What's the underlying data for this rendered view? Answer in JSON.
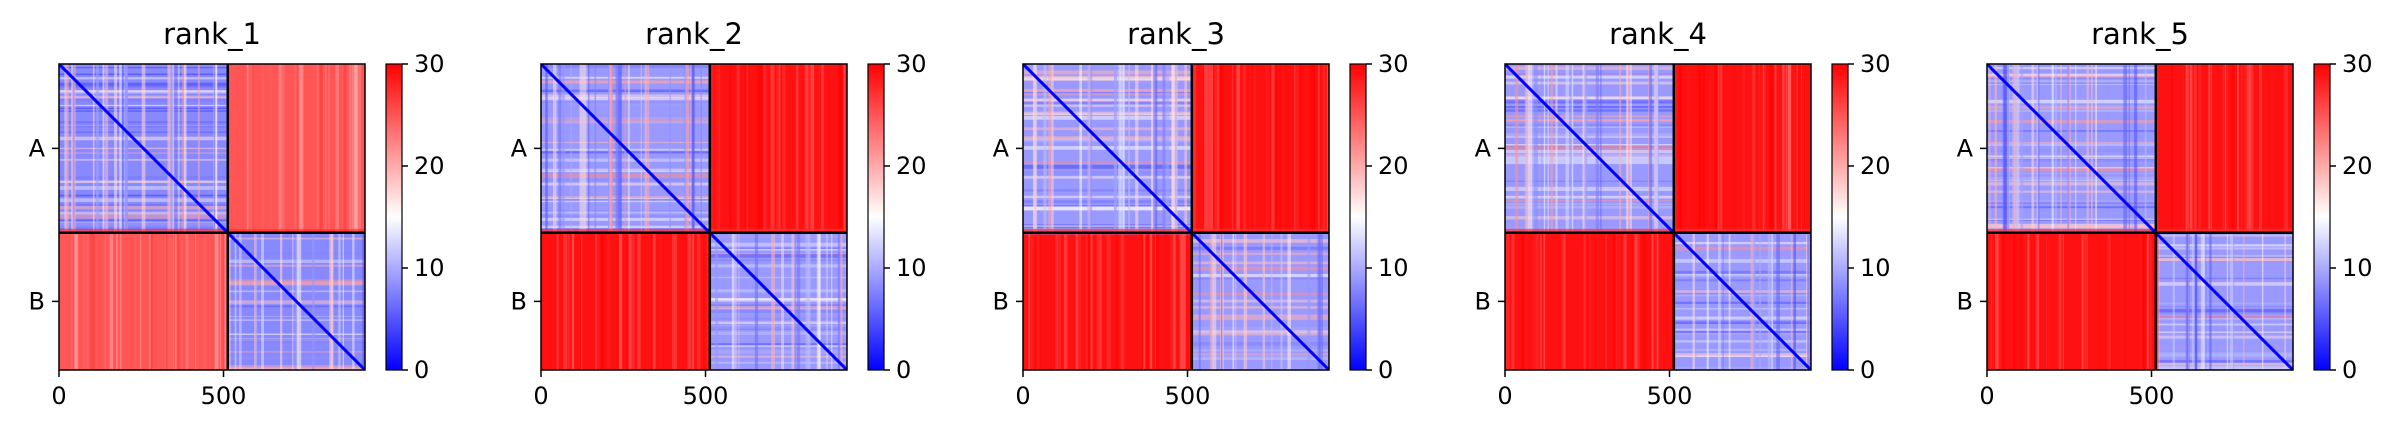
{
  "figure": {
    "colormap": {
      "name": "bwr",
      "low_color": "#0000ff",
      "mid_color": "#ffffff",
      "high_color": "#ff0000",
      "range": [
        0,
        30
      ],
      "ticks": [
        "0",
        "10",
        "20",
        "30"
      ]
    },
    "chain_boundary_line_color": "#000000"
  },
  "chart_data": [
    {
      "type": "heatmap",
      "title": "rank_1",
      "chains": [
        "A",
        "B"
      ],
      "chain_boundary": 513,
      "length": 930,
      "x_ticks": [
        {
          "value": 0,
          "label": "0"
        },
        {
          "value": 500,
          "label": "500"
        }
      ],
      "color_range": [
        0,
        30
      ],
      "inter_chain_mean": 25,
      "intra_chain_mean": 8
    },
    {
      "type": "heatmap",
      "title": "rank_2",
      "chains": [
        "A",
        "B"
      ],
      "chain_boundary": 513,
      "length": 930,
      "x_ticks": [
        {
          "value": 0,
          "label": "0"
        },
        {
          "value": 500,
          "label": "500"
        }
      ],
      "color_range": [
        0,
        30
      ],
      "inter_chain_mean": 29,
      "intra_chain_mean": 9
    },
    {
      "type": "heatmap",
      "title": "rank_3",
      "chains": [
        "A",
        "B"
      ],
      "chain_boundary": 513,
      "length": 930,
      "x_ticks": [
        {
          "value": 0,
          "label": "0"
        },
        {
          "value": 500,
          "label": "500"
        }
      ],
      "color_range": [
        0,
        30
      ],
      "inter_chain_mean": 29,
      "intra_chain_mean": 9
    },
    {
      "type": "heatmap",
      "title": "rank_4",
      "chains": [
        "A",
        "B"
      ],
      "chain_boundary": 513,
      "length": 930,
      "x_ticks": [
        {
          "value": 0,
          "label": "0"
        },
        {
          "value": 500,
          "label": "500"
        }
      ],
      "color_range": [
        0,
        30
      ],
      "inter_chain_mean": 29,
      "intra_chain_mean": 9
    },
    {
      "type": "heatmap",
      "title": "rank_5",
      "chains": [
        "A",
        "B"
      ],
      "chain_boundary": 513,
      "length": 930,
      "x_ticks": [
        {
          "value": 0,
          "label": "0"
        },
        {
          "value": 500,
          "label": "500"
        }
      ],
      "color_range": [
        0,
        30
      ],
      "inter_chain_mean": 29,
      "intra_chain_mean": 9
    }
  ]
}
